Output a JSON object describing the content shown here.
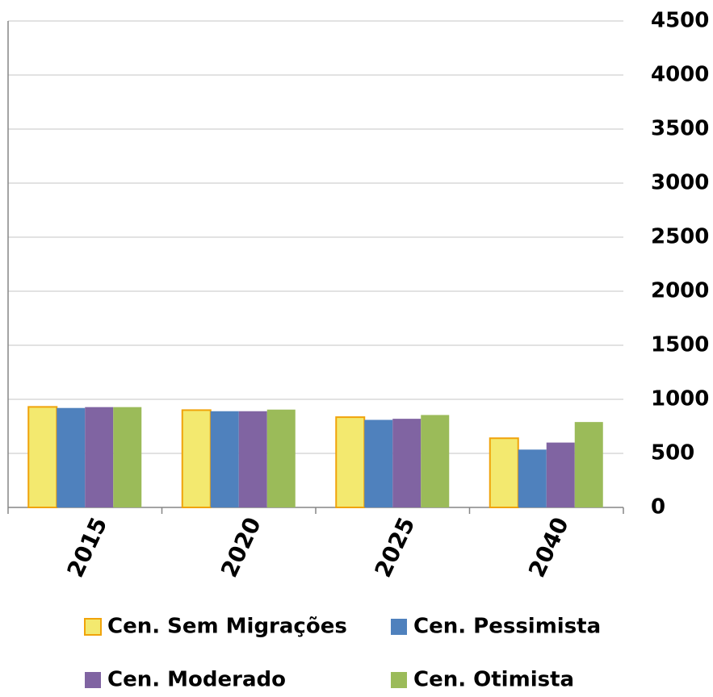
{
  "chart_data": {
    "type": "bar",
    "categories": [
      "2015",
      "2020",
      "2025",
      "2040"
    ],
    "series": [
      {
        "name": "Cen. Sem Migrações",
        "color": "#f3e96f",
        "stroke": "#f0a30a",
        "values": [
          930,
          900,
          835,
          640
        ]
      },
      {
        "name": "Cen. Pessimista",
        "color": "#4f81bd",
        "values": [
          920,
          890,
          810,
          535
        ]
      },
      {
        "name": "Cen. Moderado",
        "color": "#8064a2",
        "values": [
          928,
          890,
          820,
          600
        ]
      },
      {
        "name": "Cen. Otimista",
        "color": "#9bbb59",
        "values": [
          928,
          905,
          855,
          790
        ]
      }
    ],
    "ylim": [
      0,
      4500
    ],
    "yticks": [
      0,
      500,
      1000,
      1500,
      2000,
      2500,
      3000,
      3500,
      4000,
      4500
    ],
    "y_axis_side": "right",
    "grid": true
  }
}
